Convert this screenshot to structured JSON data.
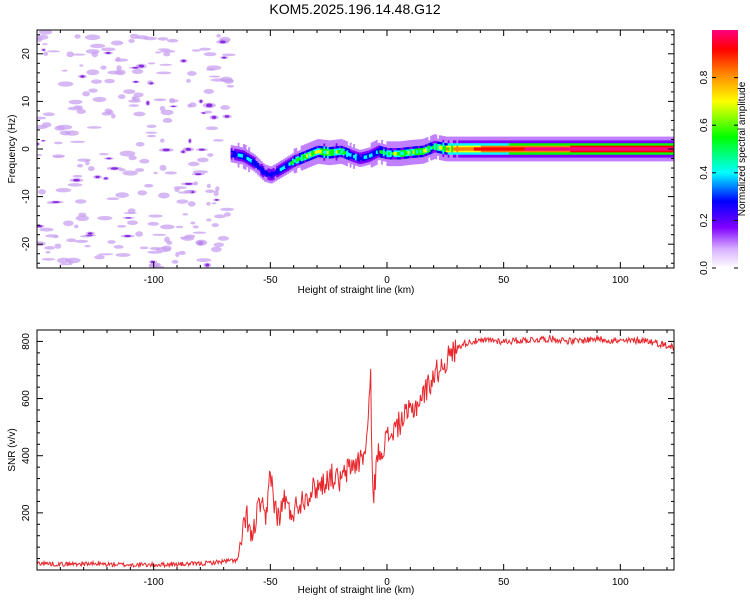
{
  "title": "KOM5.2025.196.14.48.G12",
  "colors": {
    "snr_line": "#e8262b",
    "noise_blob": "#c8a0f0",
    "noise_core": "#8a2be2",
    "axis": "#000000"
  },
  "chart_data": [
    {
      "type": "heatmap",
      "xlabel": "Height of straight line (km)",
      "ylabel": "Frequency (Hz)",
      "xlim": [
        -150,
        123
      ],
      "ylim": [
        -25,
        25
      ],
      "xticks": [
        -100,
        -50,
        0,
        50,
        100
      ],
      "yticks": [
        -20,
        -10,
        0,
        10,
        20
      ],
      "x_ticklabels": [
        "-100",
        "-50",
        "0",
        "50",
        "100"
      ],
      "y_ticklabels": [
        "-20",
        "-10",
        "0",
        "10",
        "20"
      ],
      "colorbar": {
        "label": "Normalized spectral amplitude",
        "range": [
          0,
          1
        ],
        "ticks": [
          0.0,
          0.2,
          0.4,
          0.6,
          0.8
        ],
        "ticklabels": [
          "0.0",
          "0.2",
          "0.4",
          "0.6",
          "0.8"
        ],
        "colormap": [
          "#ffffff",
          "#c080ff",
          "#8000ff",
          "#0000ff",
          "#00ffff",
          "#00ff00",
          "#ffff00",
          "#ff8000",
          "#ff0000",
          "#ff0080"
        ]
      },
      "ridge": {
        "x": [
          -67,
          -62,
          -57,
          -53,
          -50,
          -45,
          -40,
          -35,
          -30,
          -25,
          -20,
          -15,
          -12,
          -8,
          -4,
          0,
          5,
          10,
          15,
          20,
          25,
          30,
          60,
          90,
          123
        ],
        "freq": [
          -1.0,
          -1.5,
          -3.0,
          -5.0,
          -5.5,
          -4.0,
          -2.5,
          -1.5,
          -0.5,
          -0.8,
          -0.5,
          -1.5,
          -2.0,
          -1.5,
          -0.5,
          -1.0,
          -1.0,
          -0.7,
          -0.5,
          0.5,
          0.0,
          0.0,
          0.0,
          0.0,
          0.0
        ],
        "amplitude": [
          0.3,
          0.45,
          0.35,
          0.3,
          0.3,
          0.4,
          0.45,
          0.55,
          0.6,
          0.6,
          0.55,
          0.45,
          0.35,
          0.4,
          0.45,
          0.5,
          0.55,
          0.55,
          0.6,
          0.5,
          0.65,
          0.8,
          0.95,
          1.0,
          0.98
        ]
      },
      "noise_region": [
        -150,
        -67
      ]
    },
    {
      "type": "line",
      "xlabel": "Height of straight line (km)",
      "ylabel": "SNR (v/v)",
      "xlim": [
        -150,
        123
      ],
      "ylim": [
        0,
        840
      ],
      "xticks": [
        -100,
        -50,
        0,
        50,
        100
      ],
      "yticks": [
        200,
        400,
        600,
        800
      ],
      "x_ticklabels": [
        "-100",
        "-50",
        "0",
        "50",
        "100"
      ],
      "y_ticklabels": [
        "200",
        "400",
        "600",
        "800"
      ],
      "series": [
        {
          "x": [
            -150,
            -140,
            -130,
            -120,
            -110,
            -100,
            -90,
            -80,
            -70,
            -64,
            -62,
            -60,
            -58,
            -56,
            -54,
            -52,
            -50,
            -48,
            -46,
            -44,
            -42,
            -40,
            -36,
            -32,
            -28,
            -24,
            -20,
            -16,
            -12,
            -9,
            -7,
            -6,
            -4,
            -2,
            0,
            4,
            8,
            12,
            16,
            20,
            24,
            28,
            32,
            36,
            40,
            44,
            50,
            60,
            70,
            80,
            90,
            100,
            110,
            118,
            123
          ],
          "y": [
            25,
            20,
            22,
            20,
            18,
            18,
            20,
            22,
            30,
            35,
            120,
            190,
            100,
            190,
            240,
            150,
            360,
            210,
            180,
            260,
            200,
            210,
            250,
            280,
            300,
            330,
            310,
            360,
            380,
            420,
            660,
            250,
            400,
            430,
            460,
            500,
            540,
            570,
            620,
            680,
            720,
            760,
            790,
            800,
            800,
            805,
            800,
            805,
            810,
            800,
            810,
            800,
            805,
            790,
            780
          ]
        }
      ]
    }
  ]
}
